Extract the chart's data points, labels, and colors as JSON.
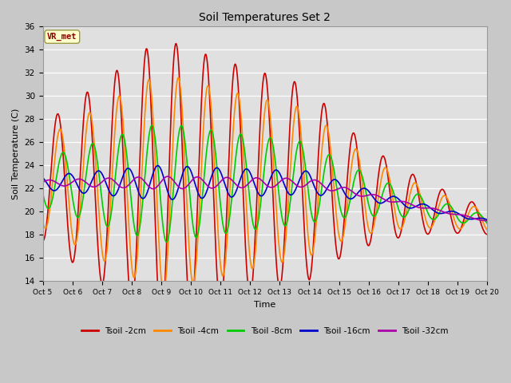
{
  "title": "Soil Temperatures Set 2",
  "xlabel": "Time",
  "ylabel": "Soil Temperature (C)",
  "ylim": [
    14,
    36
  ],
  "xlim": [
    0,
    15
  ],
  "annotation": "VR_met",
  "fig_color": "#c8c8c8",
  "ax_color": "#e0e0e0",
  "x_tick_labels": [
    "Oct 5",
    "Oct 6",
    "Oct 7",
    "Oct 8",
    "Oct 9",
    "Oct 10",
    "Oct 11",
    "Oct 12",
    "Oct 13",
    "Oct 14",
    "Oct 15",
    "Oct 16",
    "Oct 17",
    "Oct 18",
    "Oct 19",
    "Oct 20"
  ],
  "series": [
    {
      "label": "Tsoil -2cm",
      "color": "#cc0000",
      "lw": 1.2
    },
    {
      "label": "Tsoil -4cm",
      "color": "#ff8800",
      "lw": 1.2
    },
    {
      "label": "Tsoil -8cm",
      "color": "#00cc00",
      "lw": 1.2
    },
    {
      "label": "Tsoil -16cm",
      "color": "#0000cc",
      "lw": 1.2
    },
    {
      "label": "Tsoil -32cm",
      "color": "#aa00aa",
      "lw": 1.2
    }
  ]
}
